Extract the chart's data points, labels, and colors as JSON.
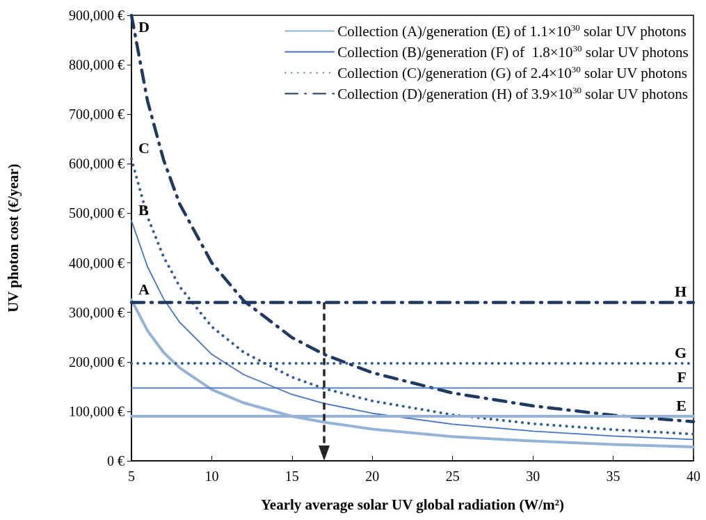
{
  "chart_data": {
    "type": "line",
    "xlabel": "Yearly average solar UV global radiation (W/m²)",
    "ylabel": "UV photon cost (€/year)",
    "xlim": [
      5,
      40
    ],
    "xticks": [
      5,
      10,
      15,
      20,
      25,
      30,
      35,
      40
    ],
    "ylim": [
      0,
      900000
    ],
    "yticks": [
      {
        "value": 0,
        "label": "0 €"
      },
      {
        "value": 100000,
        "label": "100,000 €"
      },
      {
        "value": 200000,
        "label": "200,000 €"
      },
      {
        "value": 300000,
        "label": "300,000 €"
      },
      {
        "value": 400000,
        "label": "400,000 €"
      },
      {
        "value": 500000,
        "label": "500,000 €"
      },
      {
        "value": 600000,
        "label": "600,000 €"
      },
      {
        "value": 700000,
        "label": "700,000 €"
      },
      {
        "value": 800000,
        "label": "800,000 €"
      },
      {
        "value": 900000,
        "label": "900,000 €"
      }
    ],
    "grid": false,
    "legend": "top right",
    "marker": "none",
    "series": [
      {
        "name": "Collection (A)/generation (E) of 1.1×10$^{30}$ solar UV photons",
        "color": "#95b3d7",
        "line_style": "solid",
        "x": [
          5,
          6,
          7,
          8,
          10,
          12,
          15,
          17,
          20,
          25,
          30,
          35,
          40
        ],
        "values": [
          325000,
          263000,
          219000,
          188000,
          144000,
          117000,
          90000,
          78000,
          64000,
          49000,
          40000,
          33000,
          28000
        ]
      },
      {
        "name": "Collection (B)/generation (F) of  1.8×10$^{30}$ solar UV photons",
        "color": "#4472c4",
        "line_style": "solid",
        "x": [
          5,
          6,
          7,
          8,
          10,
          12,
          15,
          17,
          20,
          25,
          30,
          35,
          40
        ],
        "values": [
          485000,
          392000,
          327000,
          280000,
          215000,
          174000,
          134000,
          116000,
          96000,
          74000,
          60000,
          50000,
          43000
        ]
      },
      {
        "name": "Collection (C)/generation (G) of 2.4×10$^{30}$ solar UV photons",
        "color": "#2e5c9a",
        "line_style": "dotted",
        "x": [
          5,
          6,
          7,
          8,
          10,
          12,
          15,
          17,
          20,
          25,
          30,
          35,
          40
        ],
        "values": [
          610000,
          493000,
          412000,
          352000,
          271000,
          219000,
          169000,
          146000,
          121000,
          93000,
          75000,
          63000,
          54000
        ]
      },
      {
        "name": "Collection (D)/generation (H) of 3.9×10$^{30}$ solar UV photons",
        "color": "#1f3a60",
        "line_style": "dashed",
        "x": [
          5,
          6,
          7,
          8,
          10,
          12,
          15,
          17,
          20,
          25,
          30,
          35,
          40
        ],
        "values": [
          900000,
          727000,
          608000,
          519000,
          400000,
          323000,
          249000,
          215000,
          178000,
          137000,
          111000,
          92000,
          79000
        ]
      },
      {
        "color": "#95b3d7",
        "line_style": "solid",
        "x": [
          5,
          40
        ],
        "values": [
          90000,
          90000
        ]
      },
      {
        "color": "#4472c4",
        "line_style": "solid",
        "x": [
          5,
          40
        ],
        "values": [
          147000,
          147000
        ]
      },
      {
        "color": "#2e5c9a",
        "line_style": "dotted",
        "x": [
          5,
          40
        ],
        "values": [
          197000,
          197000
        ]
      },
      {
        "color": "#1f3a60",
        "line_style": "dashed",
        "x": [
          5,
          40
        ],
        "values": [
          320000,
          320000
        ]
      }
    ],
    "ref_lines": [
      {
        "axis": "x",
        "value": 17,
        "color": "#262626",
        "line_style": "dashed"
      }
    ],
    "annotations": [
      "A",
      "B",
      "C",
      "D",
      "E",
      "F",
      "G",
      "H"
    ]
  }
}
